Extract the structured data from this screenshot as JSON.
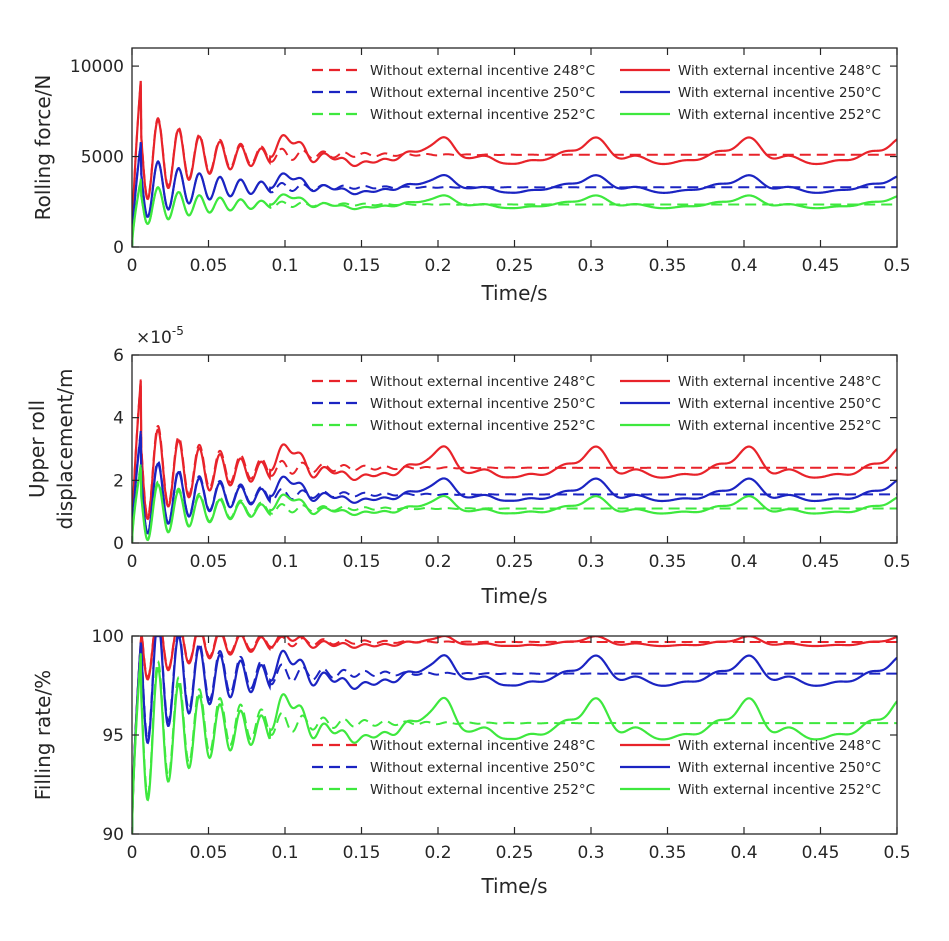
{
  "colors": {
    "248": "#e8232a",
    "250": "#1b24c2",
    "252": "#3ee83e"
  },
  "chart_data": [
    {
      "type": "line",
      "ylabel": "Rolling force/N",
      "xlabel": "Time/s",
      "xlim": [
        0,
        0.5
      ],
      "ylim": [
        0,
        11000
      ],
      "xticks": [
        "0",
        "0.05",
        "0.1",
        "0.15",
        "0.2",
        "0.25",
        "0.3",
        "0.35",
        "0.4",
        "0.45",
        "0.5"
      ],
      "yticks": [
        "0",
        "5000",
        "10000"
      ],
      "ytick_values": [
        0,
        5000,
        10000
      ],
      "exponent": "",
      "series": [
        {
          "name": "Without external incentive 248°C",
          "temp": "248",
          "style": "dashed",
          "start": 0,
          "peak": 9500,
          "trough": 3600,
          "steady": 5100,
          "bumps": false,
          "bump": 0
        },
        {
          "name": "With external incentive 248°C",
          "temp": "248",
          "style": "solid",
          "start": 0,
          "peak": 9500,
          "trough": 3600,
          "steady": 5000,
          "bumps": true,
          "bump": 950,
          "dip": 400
        },
        {
          "name": "Without external incentive 250°C",
          "temp": "250",
          "style": "dashed",
          "start": 0,
          "peak": 6000,
          "trough": 1800,
          "steady": 3300,
          "bumps": false,
          "bump": 0
        },
        {
          "name": "With external incentive 250°C",
          "temp": "250",
          "style": "solid",
          "start": 0,
          "peak": 5900,
          "trough": 1800,
          "steady": 3300,
          "bumps": true,
          "bump": 600,
          "dip": 300
        },
        {
          "name": "Without external incentive 252°C",
          "temp": "252",
          "style": "dashed",
          "start": 0,
          "peak": 3900,
          "trough": 1100,
          "steady": 2350,
          "bumps": false,
          "bump": 0
        },
        {
          "name": "With external incentive 252°C",
          "temp": "252",
          "style": "solid",
          "start": 0,
          "peak": 3800,
          "trough": 1100,
          "steady": 2350,
          "bumps": true,
          "bump": 450,
          "dip": 200
        }
      ]
    },
    {
      "type": "line",
      "ylabel": "Upper roll displacement/m",
      "ylabel_lines": [
        "Upper roll",
        "displacement/m"
      ],
      "xlabel": "Time/s",
      "xlim": [
        0,
        0.5
      ],
      "ylim": [
        0,
        6e-05
      ],
      "xticks": [
        "0",
        "0.05",
        "0.1",
        "0.15",
        "0.2",
        "0.25",
        "0.3",
        "0.35",
        "0.4",
        "0.45",
        "0.5"
      ],
      "yticks": [
        "0",
        "2",
        "4",
        "6"
      ],
      "ytick_values": [
        0,
        2e-05,
        4e-05,
        6e-05
      ],
      "exponent": "×10",
      "exponent_power": "-5",
      "series": [
        {
          "name": "Without external incentive 248°C",
          "temp": "248",
          "style": "dashed",
          "start": 0,
          "peak": 5.4e-05,
          "trough": 1.5e-05,
          "steady": 2.4e-05,
          "bumps": false,
          "bump": 0
        },
        {
          "name": "With external incentive 248°C",
          "temp": "248",
          "style": "solid",
          "start": 0,
          "peak": 5.35e-05,
          "trough": 1.5e-05,
          "steady": 2.3e-05,
          "bumps": true,
          "bump": 7e-06,
          "dip": 2e-06
        },
        {
          "name": "Without external incentive 250°C",
          "temp": "250",
          "style": "dashed",
          "start": 0,
          "peak": 3.7e-05,
          "trough": 6e-06,
          "steady": 1.55e-05,
          "bumps": false,
          "bump": 0
        },
        {
          "name": "With external incentive 250°C",
          "temp": "250",
          "style": "solid",
          "start": 0,
          "peak": 3.6e-05,
          "trough": 6e-06,
          "steady": 1.5e-05,
          "bumps": true,
          "bump": 5e-06,
          "dip": 1.5e-06
        },
        {
          "name": "Without external incentive 252°C",
          "temp": "252",
          "style": "dashed",
          "start": 0,
          "peak": 2.6e-05,
          "trough": 1e-06,
          "steady": 1.1e-05,
          "bumps": false,
          "bump": 0
        },
        {
          "name": "With external incentive 252°C",
          "temp": "252",
          "style": "solid",
          "start": 0,
          "peak": 2.5e-05,
          "trough": 1e-06,
          "steady": 1.05e-05,
          "bumps": true,
          "bump": 4e-06,
          "dip": 1e-06
        }
      ]
    },
    {
      "type": "line",
      "ylabel": "Filling rate/%",
      "xlabel": "Time/s",
      "xlim": [
        0,
        0.5
      ],
      "ylim": [
        90,
        100
      ],
      "xticks": [
        "0",
        "0.05",
        "0.1",
        "0.15",
        "0.2",
        "0.25",
        "0.3",
        "0.35",
        "0.4",
        "0.45",
        "0.5"
      ],
      "yticks": [
        "90",
        "95",
        "100"
      ],
      "ytick_values": [
        90,
        95,
        100
      ],
      "exponent": "",
      "series": [
        {
          "name": "Without external incentive 248°C",
          "temp": "248",
          "style": "dashed",
          "start": 90,
          "peak": 100,
          "trough": 95.5,
          "steady": 99.7,
          "bumps": false,
          "bump": 0,
          "cap": 100
        },
        {
          "name": "With external incentive 248°C",
          "temp": "248",
          "style": "solid",
          "start": 90,
          "peak": 100,
          "trough": 95.5,
          "steady": 99.6,
          "bumps": true,
          "bump": 0.35,
          "dip": 0.1,
          "cap": 100
        },
        {
          "name": "Without external incentive 250°C",
          "temp": "250",
          "style": "dashed",
          "start": 90,
          "peak": 100,
          "trough": 91.8,
          "steady": 98.1,
          "bumps": false,
          "bump": 0,
          "cap": 100
        },
        {
          "name": "With external incentive 250°C",
          "temp": "250",
          "style": "solid",
          "start": 90,
          "peak": 100,
          "trough": 91.7,
          "steady": 97.9,
          "bumps": true,
          "bump": 1.0,
          "dip": 0.4,
          "cap": 100
        },
        {
          "name": "Without external incentive 252°C",
          "temp": "252",
          "style": "dashed",
          "start": 90,
          "peak": 99.5,
          "trough": 90.4,
          "steady": 95.6,
          "bumps": false,
          "bump": 0,
          "cap": 100
        },
        {
          "name": "With external incentive 252°C",
          "temp": "252",
          "style": "solid",
          "start": 90,
          "peak": 99.4,
          "trough": 90.4,
          "steady": 95.3,
          "bumps": true,
          "bump": 1.4,
          "dip": 0.5,
          "cap": 100
        }
      ]
    }
  ]
}
